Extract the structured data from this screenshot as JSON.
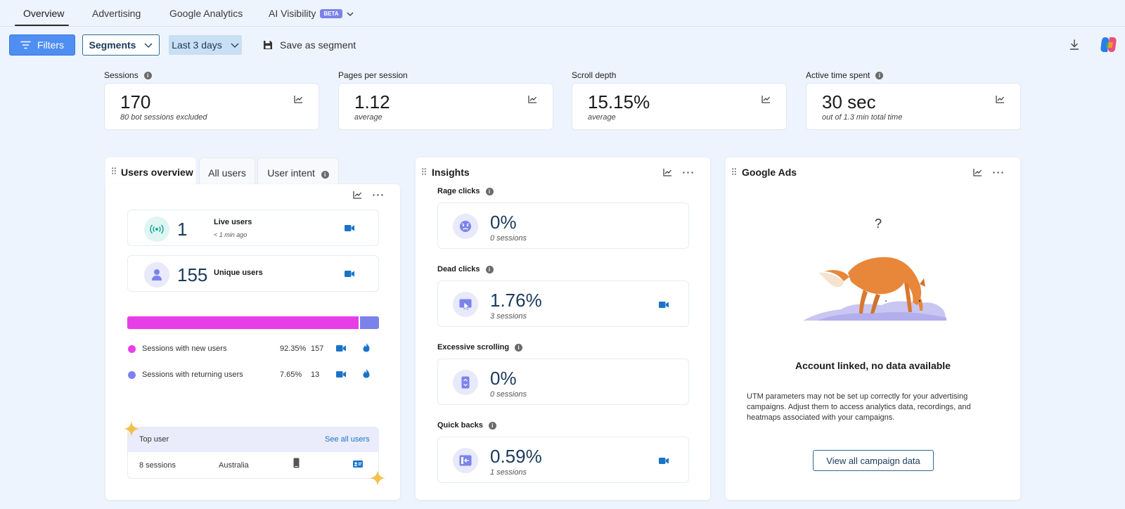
{
  "nav": {
    "tabs": [
      {
        "label": "Overview"
      },
      {
        "label": "Advertising"
      },
      {
        "label": "Google Analytics"
      },
      {
        "label": "AI Visibility"
      }
    ],
    "beta_badge": "BETA"
  },
  "toolbar": {
    "filters_label": "Filters",
    "segments_label": "Segments",
    "date_range_label": "Last 3 days",
    "save_segment_label": "Save as segment"
  },
  "metrics": [
    {
      "label": "Sessions",
      "value": "170",
      "sub": "80 bot sessions excluded"
    },
    {
      "label": "Pages per session",
      "value": "1.12",
      "sub": "average"
    },
    {
      "label": "Scroll depth",
      "value": "15.15%",
      "sub": "average"
    },
    {
      "label": "Active time spent",
      "value": "30 sec",
      "sub": "out of 1.3 min total time"
    }
  ],
  "users_panel": {
    "tabs": [
      {
        "label": "Users overview"
      },
      {
        "label": "All users"
      },
      {
        "label": "User intent"
      }
    ],
    "live": {
      "value": "1",
      "label": "Live users",
      "sub": "< 1 min ago"
    },
    "unique": {
      "value": "155",
      "label": "Unique users"
    },
    "bar_new_fraction": 0.9235,
    "rows": [
      {
        "label": "Sessions with new users",
        "percent": "92.35%",
        "count": "157"
      },
      {
        "label": "Sessions with returning users",
        "percent": "7.65%",
        "count": "13"
      }
    ],
    "top_user": {
      "title": "Top user",
      "link": "See all users",
      "sessions": "8 sessions",
      "country": "Australia"
    }
  },
  "insights_panel": {
    "title": "Insights",
    "items": [
      {
        "label": "Rage clicks",
        "value": "0%",
        "sub": "0 sessions"
      },
      {
        "label": "Dead clicks",
        "value": "1.76%",
        "sub": "3 sessions"
      },
      {
        "label": "Excessive scrolling",
        "value": "0%",
        "sub": "0 sessions"
      },
      {
        "label": "Quick backs",
        "value": "0.59%",
        "sub": "1 sessions"
      }
    ]
  },
  "ads_panel": {
    "title": "Google Ads",
    "question_mark": "?",
    "heading": "Account linked, no data available",
    "body": "UTM parameters may not be set up correctly for your advertising campaigns. Adjust them to access analytics data, recordings, and heatmaps associated with your campaigns.",
    "button_label": "View all campaign data"
  },
  "colors": {
    "accent": "#4f8ef2",
    "new_users": "#e83ee8",
    "returning_users": "#7b83eb",
    "icon_blue": "#1a73c8"
  }
}
